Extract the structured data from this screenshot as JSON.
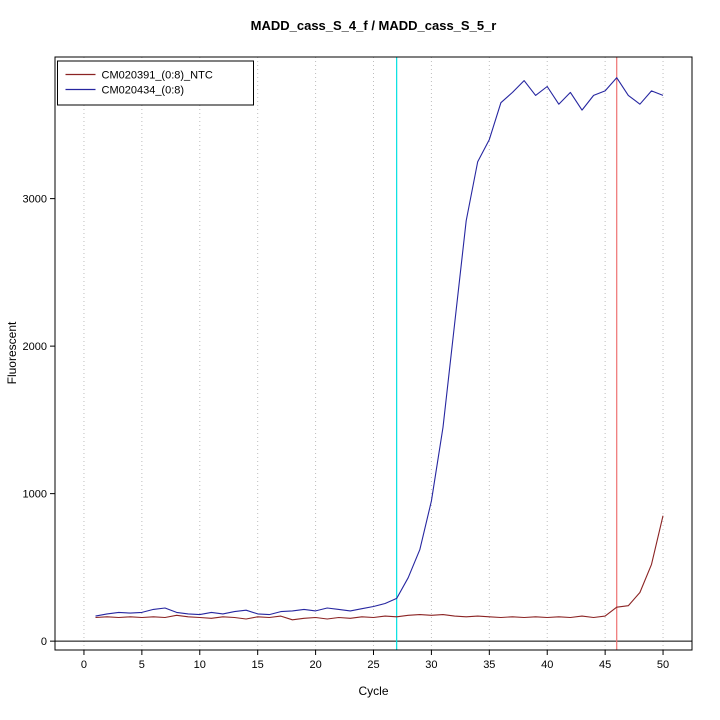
{
  "title": "MADD_cass_S_4_f / MADD_cass_S_5_r",
  "chart_data": {
    "type": "line",
    "title": "MADD_cass_S_4_f / MADD_cass_S_5_r",
    "xlabel": "Cycle",
    "ylabel": "Fluorescent",
    "xlim": [
      -2.5,
      52.5
    ],
    "ylim": [
      -60,
      3960
    ],
    "x_ticks": [
      0,
      5,
      10,
      15,
      20,
      25,
      30,
      35,
      40,
      45,
      50
    ],
    "y_ticks": [
      0,
      1000,
      2000,
      3000
    ],
    "grid": "vertical-dotted",
    "grid_color": "#bdbdbd",
    "legend_position": "top-left",
    "background": "#ffffff",
    "series": [
      {
        "name": "CM020391_(0:8)_NTC",
        "color": "#8b2323",
        "x": [
          1,
          2,
          3,
          4,
          5,
          6,
          7,
          8,
          9,
          10,
          11,
          12,
          13,
          14,
          15,
          16,
          17,
          18,
          19,
          20,
          21,
          22,
          23,
          24,
          25,
          26,
          27,
          28,
          29,
          30,
          31,
          32,
          33,
          34,
          35,
          36,
          37,
          38,
          39,
          40,
          41,
          42,
          43,
          44,
          45,
          46,
          47,
          48,
          49,
          50
        ],
        "values": [
          160,
          165,
          160,
          165,
          160,
          165,
          160,
          175,
          165,
          160,
          155,
          165,
          160,
          150,
          165,
          160,
          170,
          145,
          155,
          160,
          150,
          160,
          155,
          165,
          160,
          170,
          165,
          175,
          180,
          175,
          180,
          170,
          165,
          170,
          165,
          160,
          165,
          160,
          165,
          160,
          165,
          160,
          170,
          160,
          170,
          230,
          240,
          330,
          520,
          850
        ]
      },
      {
        "name": "CM020434_(0:8)",
        "color": "#2626a0",
        "x": [
          1,
          2,
          3,
          4,
          5,
          6,
          7,
          8,
          9,
          10,
          11,
          12,
          13,
          14,
          15,
          16,
          17,
          18,
          19,
          20,
          21,
          22,
          23,
          24,
          25,
          26,
          27,
          28,
          29,
          30,
          31,
          32,
          33,
          34,
          35,
          36,
          37,
          38,
          39,
          40,
          41,
          42,
          43,
          44,
          45,
          46,
          47,
          48,
          49,
          50
        ],
        "values": [
          170,
          185,
          195,
          190,
          195,
          215,
          225,
          195,
          185,
          180,
          195,
          185,
          200,
          210,
          185,
          180,
          200,
          205,
          215,
          205,
          225,
          215,
          205,
          220,
          235,
          255,
          290,
          430,
          620,
          950,
          1450,
          2150,
          2850,
          3250,
          3400,
          3650,
          3720,
          3800,
          3700,
          3760,
          3640,
          3720,
          3600,
          3700,
          3730,
          3820,
          3700,
          3640,
          3730,
          3700
        ]
      }
    ],
    "vlines": [
      {
        "x": 27,
        "color": "#00e0e0",
        "label": "threshold-cycle-line"
      },
      {
        "x": 46,
        "color": "#ee7272",
        "label": "marker-cycle-line"
      }
    ],
    "hlines": [
      {
        "y": 0,
        "color": "#000000",
        "label": "zero-baseline"
      }
    ]
  }
}
